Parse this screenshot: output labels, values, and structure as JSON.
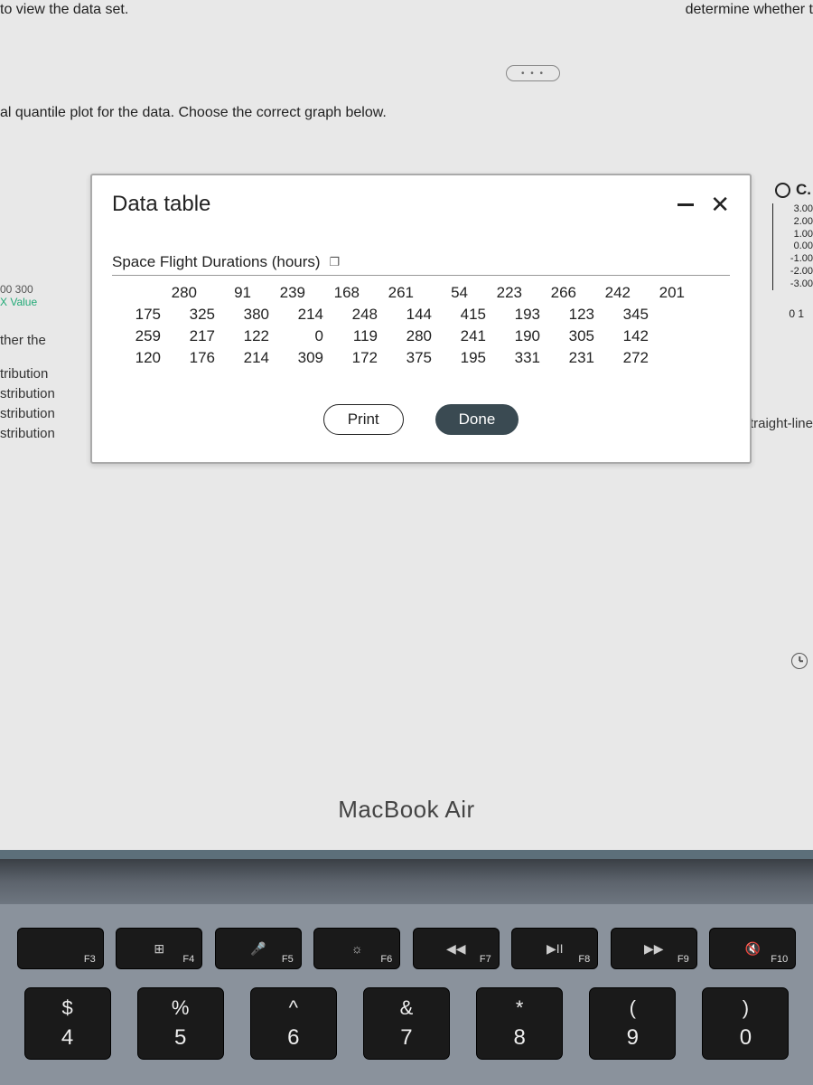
{
  "top_left_text": "to view the data set.",
  "top_right_text": "determine whether t",
  "pill_label": "• • •",
  "question_text": "al quantile plot for the data. Choose the correct graph below.",
  "left_labels": {
    "axis1": "00  300",
    "axis2": "X Value",
    "ther": "ther the",
    "t1": "tribution",
    "t2": "stribution",
    "t3": "stribution",
    "t4": "stribution"
  },
  "right_option_letter": "C.",
  "right_yticks": [
    "3.00",
    "2.00",
    "1.00",
    "0.00",
    "-1.00",
    "-2.00",
    "-3.00"
  ],
  "right_x0": "0   1",
  "right_caption": "s not a straight-line",
  "modal": {
    "title": "Data table",
    "table_caption": "Space Flight Durations (hours)",
    "rows": [
      [
        "280",
        "91",
        "239",
        "168",
        "261",
        "54",
        "223",
        "266",
        "242",
        "201"
      ],
      [
        "175",
        "325",
        "380",
        "214",
        "248",
        "144",
        "415",
        "193",
        "123",
        "345"
      ],
      [
        "259",
        "217",
        "122",
        "0",
        "119",
        "280",
        "241",
        "190",
        "305",
        "142"
      ],
      [
        "120",
        "176",
        "214",
        "309",
        "172",
        "375",
        "195",
        "331",
        "231",
        "272"
      ]
    ],
    "print_label": "Print",
    "done_label": "Done"
  },
  "laptop_label": "MacBook Air",
  "fkeys": [
    {
      "icon": "",
      "label": "F3",
      "name": "f3-key"
    },
    {
      "icon": "⊞",
      "label": "F4",
      "name": "f4-key"
    },
    {
      "icon": "🎤",
      "label": "F5",
      "name": "f5-key"
    },
    {
      "icon": "☼",
      "label": "F6",
      "name": "f6-key"
    },
    {
      "icon": "◀◀",
      "label": "F7",
      "name": "f7-key"
    },
    {
      "icon": "▶II",
      "label": "F8",
      "name": "f8-key"
    },
    {
      "icon": "▶▶",
      "label": "F9",
      "name": "f9-key"
    },
    {
      "icon": "🔇",
      "label": "F10",
      "name": "f10-key"
    }
  ],
  "numkeys": [
    {
      "top": "$",
      "bot": "4",
      "name": "key-4"
    },
    {
      "top": "%",
      "bot": "5",
      "name": "key-5"
    },
    {
      "top": "^",
      "bot": "6",
      "name": "key-6"
    },
    {
      "top": "&",
      "bot": "7",
      "name": "key-7"
    },
    {
      "top": "*",
      "bot": "8",
      "name": "key-8"
    },
    {
      "top": "(",
      "bot": "9",
      "name": "key-9"
    },
    {
      "top": ")",
      "bot": "0",
      "name": "key-0"
    }
  ]
}
